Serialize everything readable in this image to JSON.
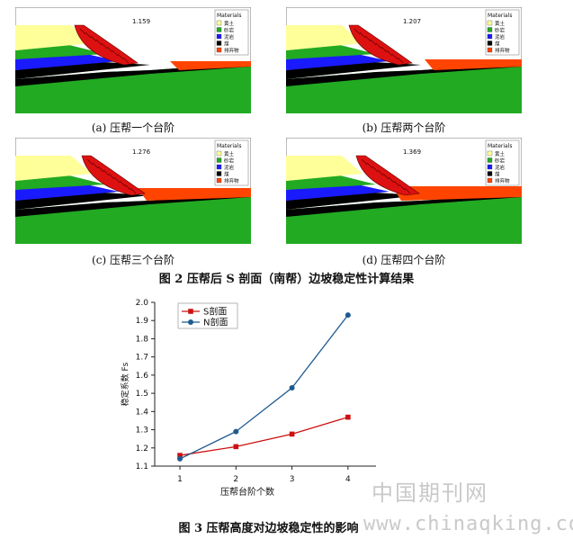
{
  "figure2": {
    "title": "图 2 压帮后 S 剖面（南帮）边坡稳定性计算结果",
    "panels": [
      {
        "caption": "(a)  压帮一个台阶",
        "fs": "1.159",
        "steps": 1
      },
      {
        "caption": "(b)  压帮两个台阶",
        "fs": "1.207",
        "steps": 2
      },
      {
        "caption": "(c)  压帮三个台阶",
        "fs": "1.276",
        "steps": 3
      },
      {
        "caption": "(d)  压帮四个台阶",
        "fs": "1.369",
        "steps": 4
      }
    ],
    "legend": {
      "title": "Materials",
      "items": [
        {
          "label": "黄土",
          "color": "#ffff99"
        },
        {
          "label": "砂岩",
          "color": "#22aa22"
        },
        {
          "label": "泥岩",
          "color": "#1a1aff"
        },
        {
          "label": "煤",
          "color": "#000000"
        },
        {
          "label": "排弃物",
          "color": "#ff4400"
        }
      ]
    }
  },
  "figure3": {
    "title": "图 3 压帮高度对边坡稳定性的影响",
    "chart_data": {
      "type": "line",
      "x": [
        1,
        2,
        3,
        4
      ],
      "xlabel": "压帮台阶个数",
      "ylabel": "稳定系数  Fs",
      "ylim": [
        1.1,
        2.0
      ],
      "yticks": [
        "1.1",
        "1.2",
        "1.3",
        "1.4",
        "1.5",
        "1.6",
        "1.7",
        "1.8",
        "1.9",
        "2.0"
      ],
      "xticks": [
        "1",
        "2",
        "3",
        "4"
      ],
      "series": [
        {
          "name": "S剖面",
          "values": [
            1.159,
            1.207,
            1.276,
            1.369
          ],
          "color": "#cc1111",
          "marker": "square"
        },
        {
          "name": "N剖面",
          "values": [
            1.14,
            1.29,
            1.53,
            1.93
          ],
          "color": "#1f5a8f",
          "marker": "circle"
        }
      ],
      "legend_position": "top-left",
      "grid": false
    }
  },
  "watermark": {
    "cn": "中国期刊网",
    "url": "www.chinaqking.com"
  }
}
